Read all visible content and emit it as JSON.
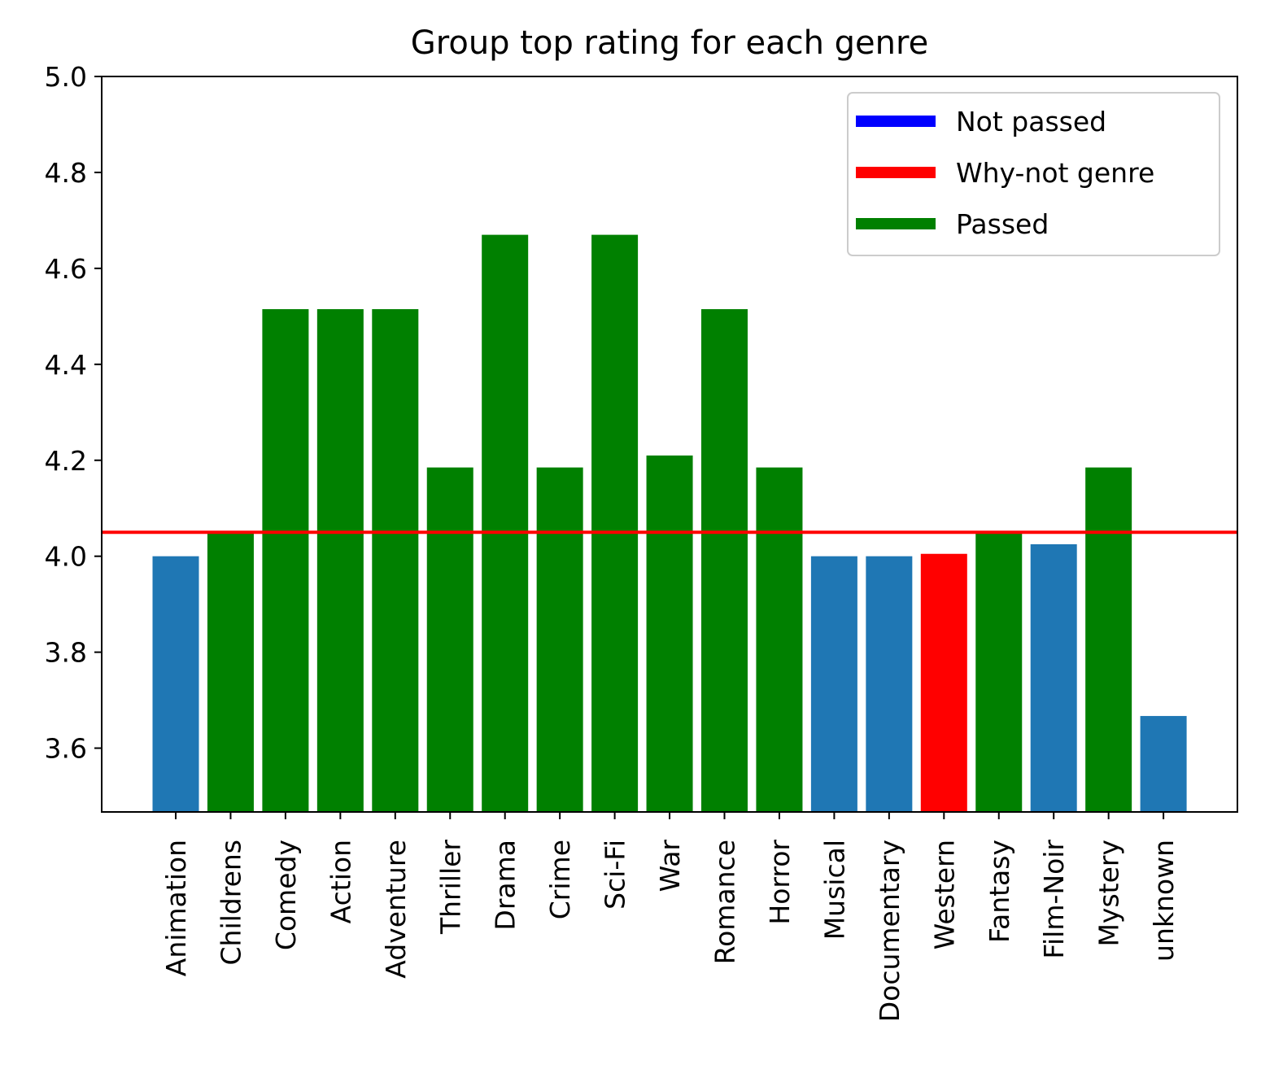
{
  "chart_data": {
    "type": "bar",
    "title": "Group top rating for each genre",
    "xlabel": "",
    "ylabel": "",
    "ylim": [
      3.467,
      5.0
    ],
    "yticks": [
      "3.6",
      "3.8",
      "4.0",
      "4.2",
      "4.4",
      "4.6",
      "4.8",
      "5.0"
    ],
    "categories": [
      "Animation",
      "Childrens",
      "Comedy",
      "Action",
      "Adventure",
      "Thriller",
      "Drama",
      "Crime",
      "Sci-Fi",
      "War",
      "Romance",
      "Horror",
      "Musical",
      "Documentary",
      "Western",
      "Fantasy",
      "Film-Noir",
      "Mystery",
      "unknown"
    ],
    "values": [
      4.0,
      4.05,
      4.515,
      4.515,
      4.515,
      4.185,
      4.67,
      4.185,
      4.67,
      4.21,
      4.515,
      4.185,
      4.0,
      4.0,
      4.005,
      4.05,
      4.025,
      4.185,
      3.667
    ],
    "bar_status": [
      "default",
      "passed",
      "passed",
      "passed",
      "passed",
      "passed",
      "passed",
      "passed",
      "passed",
      "passed",
      "passed",
      "passed",
      "default",
      "default",
      "why-not",
      "passed",
      "default",
      "passed",
      "default"
    ],
    "reference_line": {
      "value": 4.05,
      "color": "#ff0000"
    },
    "colors": {
      "default": "#1f77b4",
      "passed": "#008000",
      "why-not": "#ff0000",
      "not-passed": "#0000ff"
    },
    "legend": {
      "placement": "top-right",
      "entries": [
        {
          "label": "Not passed",
          "color": "#0000ff"
        },
        {
          "label": "Why-not genre",
          "color": "#ff0000"
        },
        {
          "label": "Passed",
          "color": "#008000"
        }
      ]
    },
    "grid": false
  }
}
